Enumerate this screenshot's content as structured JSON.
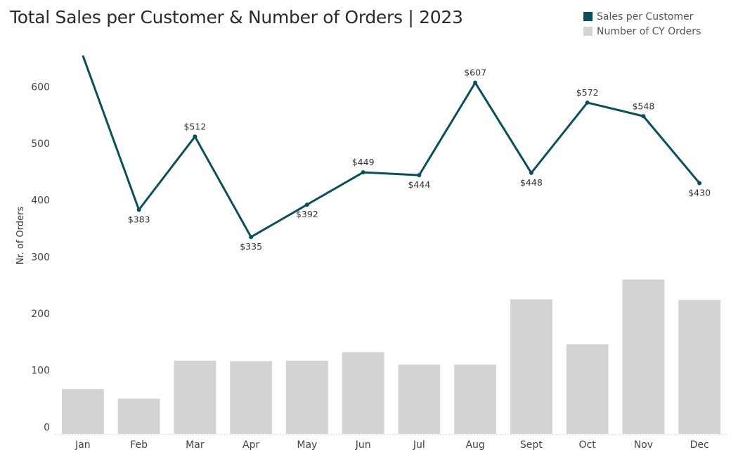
{
  "chart_data": {
    "type": "bar",
    "title": "Total Sales per Customer & Number of Orders | 2023",
    "ylabel": "Nr. of Orders",
    "ylim": [
      -12,
      676
    ],
    "yticks": [
      0,
      100,
      200,
      300,
      400,
      500,
      600
    ],
    "categories": [
      "Jan",
      "Feb",
      "Mar",
      "Apr",
      "May",
      "Jun",
      "Jul",
      "Aug",
      "Sept",
      "Oct",
      "Nov",
      "Dec"
    ],
    "legend_position": "top-right",
    "series": [
      {
        "name": "Sales per Customer",
        "type": "line",
        "color": "#0b4f5a",
        "values": [
          655,
          383,
          512,
          335,
          392,
          449,
          444,
          607,
          448,
          572,
          548,
          430
        ],
        "labels": [
          "",
          "$383",
          "$512",
          "$335",
          "$392",
          "$449",
          "$444",
          "$607",
          "$448",
          "$572",
          "$548",
          "$430"
        ],
        "label_side": [
          "above",
          "below",
          "above",
          "below",
          "below",
          "above",
          "below",
          "above",
          "below",
          "above",
          "above",
          "below"
        ]
      },
      {
        "name": "Number of CY Orders",
        "type": "bar",
        "color": "#d3d3d3",
        "values": [
          67,
          50,
          117,
          116,
          117,
          132,
          110,
          110,
          225,
          146,
          260,
          224
        ]
      }
    ]
  }
}
